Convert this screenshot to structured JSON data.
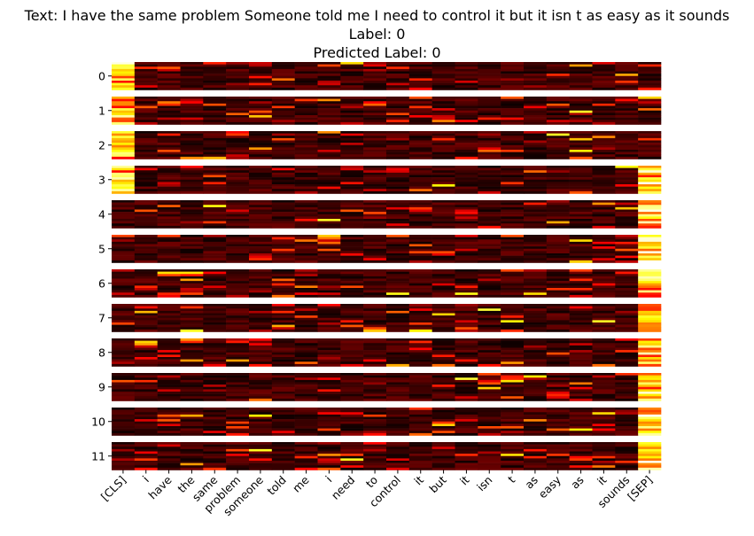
{
  "title": {
    "text_line": "Text: I have the same problem Someone told me I need to control it but it isn t as easy as it sounds",
    "label_line": "Label: 0",
    "predicted_line": "Predicted Label: 0"
  },
  "chart_data": {
    "type": "heatmap",
    "colormap": "hot",
    "tokens": [
      "[CLS]",
      "i",
      "have",
      "the",
      "same",
      "problem",
      "someone",
      "told",
      "me",
      "i",
      "need",
      "to",
      "control",
      "it",
      "but",
      "it",
      "isn",
      "t",
      "as",
      "easy",
      "as",
      "it",
      "sounds",
      "[SEP]"
    ],
    "layers": [
      "0",
      "1",
      "2",
      "3",
      "4",
      "5",
      "6",
      "7",
      "8",
      "9",
      "10",
      "11"
    ],
    "rows_per_layer": 12,
    "dominant_columns": [
      {
        "layer": "0",
        "token": "[CLS]"
      },
      {
        "layer": "1",
        "token": "[CLS]"
      },
      {
        "layer": "2",
        "token": "[CLS]"
      },
      {
        "layer": "3",
        "token": "[CLS]"
      },
      {
        "layer": "3",
        "token": "[SEP]"
      },
      {
        "layer": "4",
        "token": "[SEP]"
      },
      {
        "layer": "5",
        "token": "[SEP]"
      },
      {
        "layer": "6",
        "token": "[SEP]"
      },
      {
        "layer": "7",
        "token": "[SEP]"
      },
      {
        "layer": "8",
        "token": "[SEP]"
      },
      {
        "layer": "9",
        "token": "[SEP]"
      },
      {
        "layer": "10",
        "token": "[SEP]"
      },
      {
        "layer": "11",
        "token": "[SEP]"
      }
    ]
  }
}
